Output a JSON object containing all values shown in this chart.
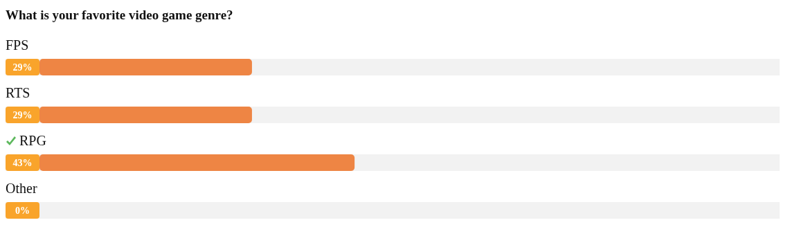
{
  "chart_data": {
    "type": "bar",
    "orientation": "horizontal",
    "title": "What is your favorite video game genre?",
    "categories": [
      "FPS",
      "RTS",
      "RPG",
      "Other"
    ],
    "values": [
      29,
      29,
      43,
      0
    ],
    "value_labels": [
      "29%",
      "29%",
      "43%",
      "0%"
    ],
    "color": "#ee8544",
    "tick_labels": "y"
  }
}
